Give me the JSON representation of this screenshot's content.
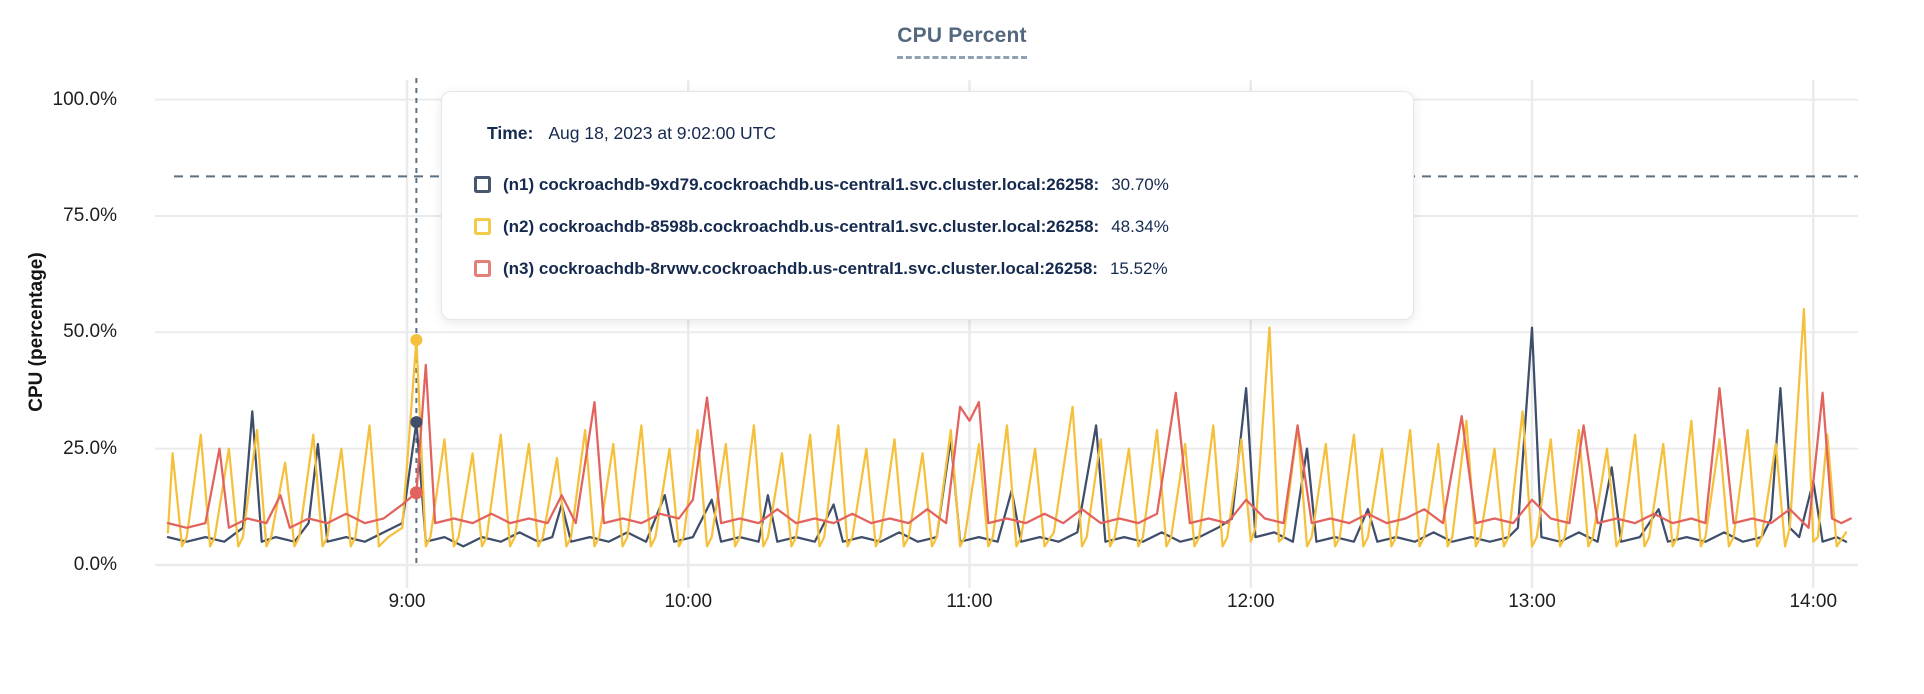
{
  "header": {
    "title": "CPU Percent"
  },
  "y_axis_title": "CPU (percentage)",
  "tooltip": {
    "time_label": "Time:",
    "time_value": "Aug 18, 2023 at 9:02:00 UTC",
    "rows": [
      {
        "name": "(n1) cockroachdb-9xd79.cockroachdb.us-central1.svc.cluster.local:26258:",
        "value": "30.70%",
        "color": "#47586E"
      },
      {
        "name": "(n2) cockroachdb-8598b.cockroachdb.us-central1.svc.cluster.local:26258:",
        "value": "48.34%",
        "color": "#F3CB4A"
      },
      {
        "name": "(n3) cockroachdb-8rvwv.cockroachdb.us-central1.svc.cluster.local:26258:",
        "value": "15.52%",
        "color": "#E58077"
      }
    ]
  },
  "chart_data": {
    "type": "line",
    "title": "CPU Percent",
    "xlabel": "",
    "ylabel": "CPU (percentage)",
    "ylim": [
      0,
      100
    ],
    "grid": true,
    "x_unit": "minutes since midnight UTC (ticks shown hourly)",
    "x_range_minutes": [
      489,
      848
    ],
    "y_ticks": [
      {
        "value": 100,
        "label": "100.0%"
      },
      {
        "value": 75,
        "label": "75.0%"
      },
      {
        "value": 50,
        "label": "50.0%"
      },
      {
        "value": 25,
        "label": "25.0%"
      },
      {
        "value": 0,
        "label": "0.0%"
      }
    ],
    "x_ticks": [
      {
        "minutes": 540,
        "label": "9:00"
      },
      {
        "minutes": 600,
        "label": "10:00"
      },
      {
        "minutes": 660,
        "label": "11:00"
      },
      {
        "minutes": 720,
        "label": "12:00"
      },
      {
        "minutes": 780,
        "label": "13:00"
      },
      {
        "minutes": 840,
        "label": "14:00"
      }
    ],
    "threshold_line_percent": 83.5,
    "hover": {
      "minutes": 542,
      "time": "Aug 18, 2023 at 9:02:00 UTC"
    },
    "colors": {
      "guide": "#5A7184",
      "grid": "#EBEBEB"
    },
    "points_format": "flattened [minutes_since_midnight, cpu_percent] pairs",
    "series": [
      {
        "id": "n1",
        "name": "(n1) cockroachdb-9xd79.cockroachdb.us-central1.svc.cluster.local:26258",
        "color": "#3E4E6B",
        "hover_value": 30.7,
        "points_flat": [
          489,
          6,
          493,
          5,
          497,
          6,
          501,
          5,
          505,
          8,
          507,
          33,
          509,
          5,
          512,
          6,
          516,
          5,
          519,
          9,
          521,
          26,
          523,
          5,
          527,
          6,
          531,
          5,
          535,
          7,
          539,
          9,
          542,
          30.7,
          544,
          5,
          548,
          6,
          552,
          4,
          556,
          6,
          560,
          5,
          564,
          7,
          568,
          5,
          571,
          6,
          573,
          13,
          575,
          5,
          579,
          6,
          583,
          5,
          587,
          7,
          591,
          5,
          595,
          15,
          597,
          5,
          601,
          6,
          605,
          14,
          607,
          5,
          611,
          6,
          615,
          5,
          617,
          15,
          619,
          5,
          623,
          6,
          627,
          5,
          631,
          13,
          633,
          5,
          637,
          6,
          641,
          5,
          645,
          7,
          649,
          5,
          653,
          6,
          656,
          27,
          658,
          5,
          662,
          6,
          666,
          5,
          669,
          16,
          671,
          5,
          675,
          6,
          679,
          5,
          683,
          7,
          687,
          30,
          689,
          5,
          693,
          6,
          697,
          5,
          701,
          7,
          705,
          5,
          709,
          6,
          713,
          8,
          716,
          10,
          719,
          38,
          721,
          6,
          725,
          7,
          729,
          5,
          732,
          25,
          734,
          5,
          738,
          6,
          742,
          5,
          745,
          12,
          747,
          5,
          751,
          6,
          755,
          5,
          759,
          7,
          763,
          5,
          767,
          6,
          771,
          5,
          775,
          6,
          777,
          8,
          780,
          51,
          782,
          6,
          786,
          5,
          790,
          7,
          794,
          5,
          797,
          21,
          799,
          5,
          803,
          6,
          807,
          12,
          809,
          5,
          813,
          6,
          817,
          5,
          821,
          7,
          825,
          5,
          829,
          6,
          831,
          10,
          833,
          38,
          835,
          8,
          837,
          6,
          840,
          18,
          842,
          5,
          845,
          6,
          847,
          5
        ]
      },
      {
        "id": "n2",
        "name": "(n2) cockroachdb-8598b.cockroachdb.us-central1.svc.cluster.local:26258",
        "color": "#F5C13C",
        "hover_value": 48.34,
        "points_flat": [
          489,
          7,
          490,
          24,
          492,
          4,
          493,
          6,
          496,
          28,
          498,
          4,
          499,
          6,
          502,
          25,
          504,
          4,
          505,
          6,
          508,
          29,
          510,
          4,
          511,
          6,
          514,
          22,
          516,
          4,
          517,
          6,
          520,
          28,
          522,
          4,
          523,
          6,
          526,
          25,
          528,
          4,
          529,
          6,
          532,
          30,
          534,
          4,
          536,
          6,
          539,
          8,
          542,
          48.34,
          544,
          4,
          545,
          6,
          548,
          27,
          550,
          4,
          551,
          6,
          554,
          24,
          556,
          4,
          557,
          6,
          560,
          28,
          562,
          4,
          563,
          6,
          566,
          26,
          568,
          4,
          569,
          6,
          572,
          23,
          574,
          4,
          575,
          6,
          578,
          29,
          580,
          4,
          581,
          6,
          584,
          26,
          586,
          4,
          587,
          6,
          590,
          30,
          592,
          4,
          593,
          6,
          596,
          25,
          598,
          4,
          599,
          6,
          602,
          29,
          604,
          4,
          605,
          6,
          608,
          26,
          610,
          4,
          611,
          6,
          614,
          30,
          616,
          4,
          617,
          6,
          620,
          24,
          622,
          4,
          623,
          6,
          626,
          28,
          628,
          4,
          629,
          6,
          632,
          30,
          634,
          4,
          635,
          6,
          638,
          25,
          640,
          4,
          641,
          6,
          644,
          27,
          646,
          4,
          647,
          6,
          650,
          24,
          652,
          4,
          653,
          6,
          656,
          29,
          658,
          4,
          659,
          6,
          662,
          26,
          664,
          4,
          665,
          6,
          668,
          30,
          670,
          4,
          671,
          6,
          674,
          25,
          676,
          4,
          678,
          7,
          682,
          34,
          684,
          4,
          685,
          6,
          688,
          27,
          690,
          4,
          691,
          6,
          694,
          25,
          696,
          4,
          697,
          6,
          700,
          29,
          702,
          4,
          703,
          6,
          706,
          26,
          708,
          4,
          709,
          6,
          712,
          30,
          714,
          4,
          715,
          6,
          718,
          27,
          720,
          5,
          721,
          8,
          724,
          51,
          726,
          5,
          727,
          6,
          730,
          30,
          732,
          4,
          733,
          6,
          736,
          26,
          738,
          4,
          739,
          6,
          742,
          28,
          744,
          4,
          745,
          6,
          748,
          25,
          750,
          4,
          751,
          6,
          754,
          29,
          756,
          4,
          757,
          6,
          760,
          26,
          762,
          4,
          763,
          6,
          766,
          31,
          768,
          4,
          769,
          6,
          772,
          25,
          774,
          4,
          775,
          6,
          778,
          33,
          780,
          4,
          781,
          6,
          784,
          27,
          786,
          4,
          787,
          6,
          790,
          29,
          792,
          4,
          793,
          6,
          796,
          25,
          798,
          4,
          799,
          6,
          802,
          28,
          804,
          4,
          805,
          6,
          808,
          26,
          810,
          4,
          811,
          6,
          814,
          31,
          816,
          4,
          817,
          6,
          820,
          27,
          822,
          4,
          823,
          6,
          826,
          29,
          828,
          4,
          829,
          6,
          832,
          26,
          834,
          4,
          835,
          8,
          838,
          55,
          840,
          5,
          841,
          6,
          843,
          28,
          845,
          4,
          847,
          7
        ]
      },
      {
        "id": "n3",
        "name": "(n3) cockroachdb-8rvwv.cockroachdb.us-central1.svc.cluster.local:26258",
        "color": "#E2635E",
        "hover_value": 15.52,
        "points_flat": [
          489,
          9,
          493,
          8,
          497,
          9,
          500,
          25,
          502,
          8,
          506,
          10,
          510,
          9,
          513,
          15,
          515,
          8,
          519,
          10,
          523,
          9,
          527,
          11,
          531,
          9,
          535,
          10,
          539,
          13,
          542,
          15.52,
          544,
          43,
          546,
          9,
          550,
          10,
          554,
          9,
          558,
          11,
          562,
          9,
          566,
          10,
          570,
          9,
          573,
          15,
          576,
          9,
          580,
          35,
          582,
          9,
          586,
          10,
          590,
          9,
          594,
          11,
          598,
          10,
          601,
          14,
          604,
          36,
          607,
          9,
          611,
          10,
          615,
          9,
          619,
          12,
          623,
          9,
          627,
          10,
          631,
          9,
          635,
          11,
          639,
          9,
          643,
          10,
          647,
          9,
          651,
          12,
          655,
          9,
          658,
          34,
          660,
          31,
          662,
          35,
          664,
          9,
          668,
          10,
          672,
          9,
          676,
          11,
          680,
          9,
          684,
          12,
          688,
          9,
          692,
          10,
          696,
          9,
          700,
          11,
          704,
          37,
          707,
          9,
          711,
          10,
          715,
          9,
          719,
          14,
          723,
          10,
          727,
          9,
          730,
          30,
          733,
          9,
          737,
          10,
          741,
          9,
          745,
          11,
          749,
          9,
          753,
          10,
          757,
          12,
          761,
          9,
          765,
          32,
          768,
          9,
          772,
          10,
          776,
          9,
          780,
          14,
          784,
          10,
          788,
          9,
          791,
          30,
          794,
          9,
          798,
          10,
          802,
          9,
          806,
          11,
          810,
          9,
          814,
          10,
          817,
          9,
          820,
          38,
          823,
          9,
          827,
          10,
          831,
          9,
          835,
          12,
          839,
          8,
          842,
          37,
          844,
          10,
          846,
          9,
          848,
          10
        ]
      }
    ]
  }
}
